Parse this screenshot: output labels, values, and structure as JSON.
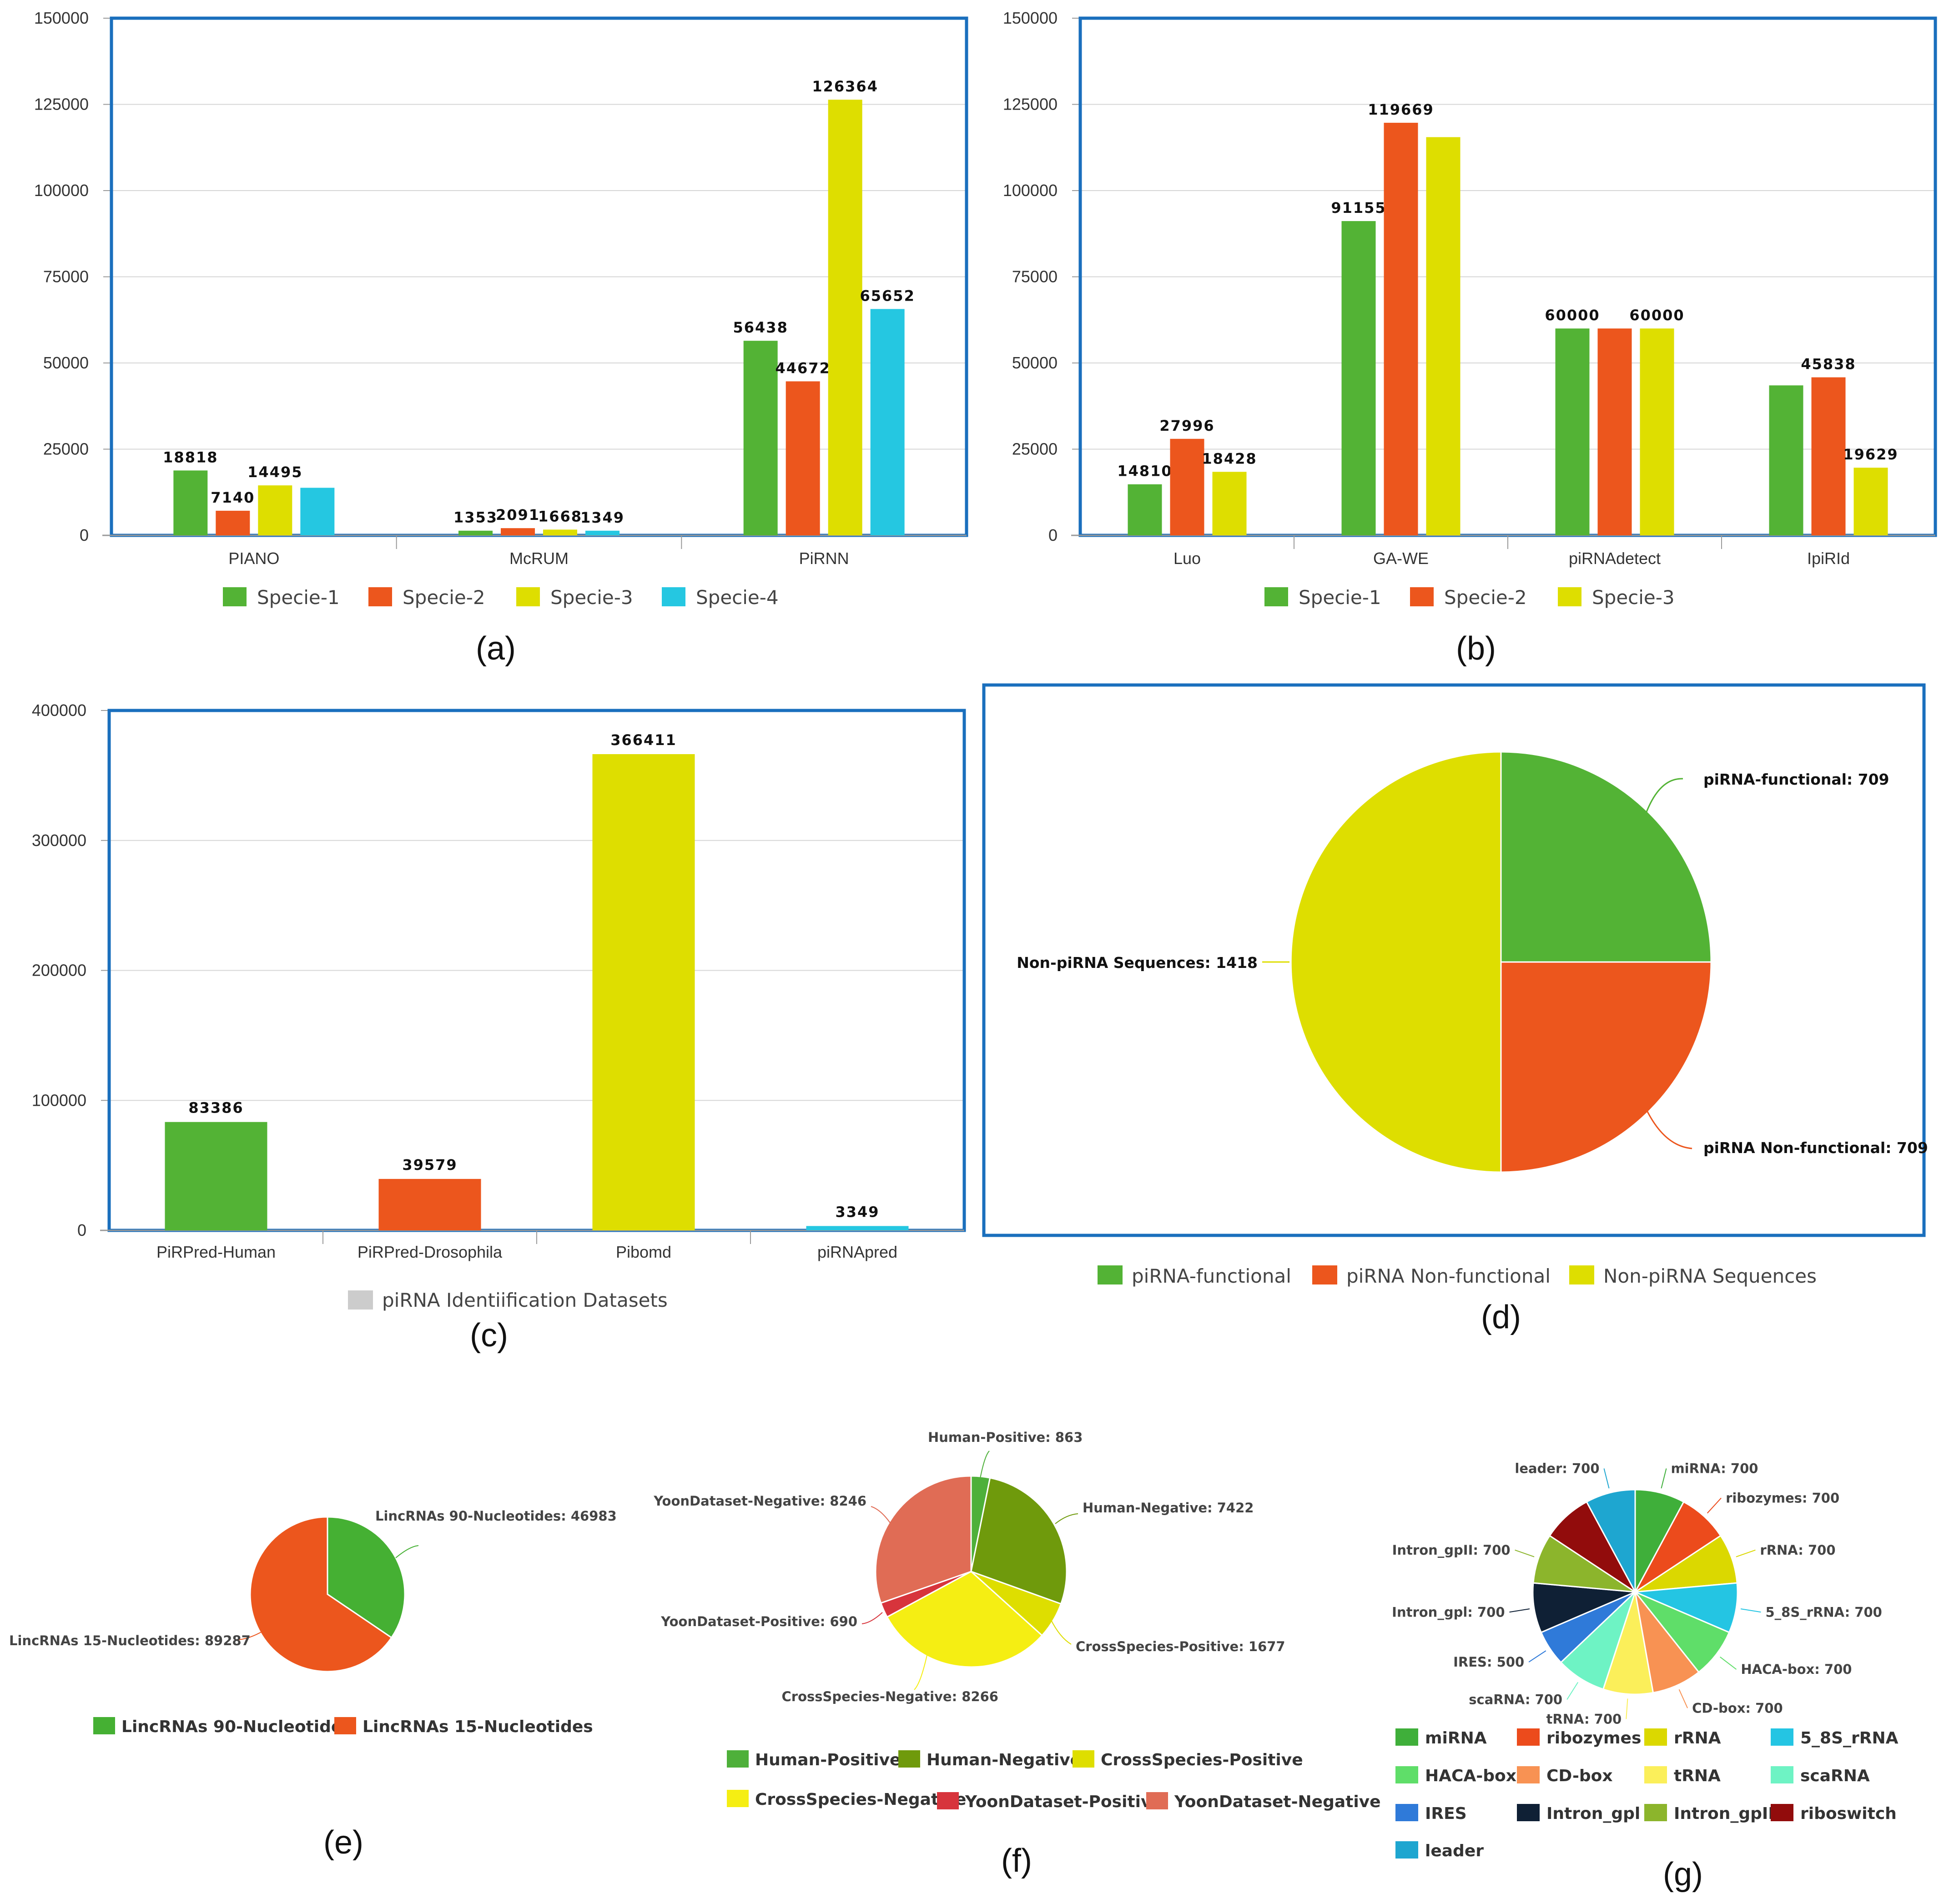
{
  "colors": {
    "green": "#53b335",
    "orange": "#ec561d",
    "yellow": "#dede00",
    "cyan": "#25c7e1",
    "gray": "#cccccc",
    "frame": "#1a6fbd"
  },
  "chart_data": [
    {
      "id": "a",
      "type": "bar",
      "panel_label": "(a)",
      "categories": [
        "PIANO",
        "McRUM",
        "PiRNN"
      ],
      "y_ticks": [
        "0",
        "25000",
        "50000",
        "75000",
        "100000",
        "125000",
        "150000"
      ],
      "ylim": [
        0,
        150000
      ],
      "series": [
        {
          "name": "Specie-1",
          "color": "green",
          "values": [
            18818,
            1353,
            56438
          ],
          "labels": [
            "18818",
            "1353",
            "56438"
          ]
        },
        {
          "name": "Specie-2",
          "color": "orange",
          "values": [
            7140,
            2091,
            44672
          ],
          "labels": [
            "7140",
            "2091",
            "44672"
          ]
        },
        {
          "name": "Specie-3",
          "color": "yellow",
          "values": [
            14495,
            1668,
            126364
          ],
          "labels": [
            "14495",
            "1668",
            "126364"
          ]
        },
        {
          "name": "Specie-4",
          "color": "cyan",
          "values": [
            13800,
            1349,
            65652
          ],
          "labels": [
            "",
            "1349",
            "65652"
          ]
        }
      ]
    },
    {
      "id": "b",
      "type": "bar",
      "panel_label": "(b)",
      "categories": [
        "Luo",
        "GA-WE",
        "piRNAdetect",
        "IpiRId"
      ],
      "y_ticks": [
        "0",
        "25000",
        "50000",
        "75000",
        "100000",
        "125000",
        "150000"
      ],
      "ylim": [
        0,
        150000
      ],
      "series": [
        {
          "name": "Specie-1",
          "color": "green",
          "values": [
            14810,
            91155,
            60000,
            43500
          ],
          "labels": [
            "14810",
            "91155",
            "60000",
            ""
          ]
        },
        {
          "name": "Specie-2",
          "color": "orange",
          "values": [
            27996,
            119669,
            60000,
            45838
          ],
          "labels": [
            "27996",
            "119669",
            "",
            "45838"
          ]
        },
        {
          "name": "Specie-3",
          "color": "yellow",
          "values": [
            18428,
            115500,
            60000,
            19629
          ],
          "labels": [
            "18428",
            "",
            "60000",
            "19629"
          ]
        }
      ]
    },
    {
      "id": "c",
      "type": "bar",
      "panel_label": "(c)",
      "categories": [
        "PiRPred-Human",
        "PiRPred-Drosophila",
        "Pibomd",
        "piRNApred"
      ],
      "y_ticks": [
        "0",
        "100000",
        "200000",
        "300000",
        "400000"
      ],
      "ylim": [
        0,
        400000
      ],
      "values": [
        83386,
        39579,
        366411,
        3349
      ],
      "labels": [
        "83386",
        "39579",
        "366411",
        "3349"
      ],
      "bar_colors": [
        "green",
        "orange",
        "yellow",
        "cyan"
      ],
      "legend": [
        {
          "name": "piRNA Identiification Datasets",
          "color": "gray"
        }
      ]
    },
    {
      "id": "d",
      "type": "pie",
      "panel_label": "(d)",
      "slices": [
        {
          "name": "piRNA-functional",
          "value": 709,
          "color": "green",
          "label": "piRNA-functional: 709"
        },
        {
          "name": "piRNA Non-functional",
          "value": 709,
          "color": "orange",
          "label": "piRNA Non-functional: 709"
        },
        {
          "name": "Non-piRNA Sequences",
          "value": 1418,
          "color": "yellow",
          "label": "Non-piRNA Sequences: 1418"
        }
      ]
    },
    {
      "id": "e",
      "type": "pie",
      "panel_label": "(e)",
      "slices": [
        {
          "name": "LincRNAs 90-Nucleotides",
          "value": 46983,
          "color": "#45b033",
          "label": "LincRNAs 90-Nucleotides: 46983"
        },
        {
          "name": "LincRNAs 15-Nucleotides",
          "value": 89287,
          "color": "#ec561d",
          "label": "LincRNAs 15-Nucleotides: 89287"
        }
      ]
    },
    {
      "id": "f",
      "type": "pie",
      "panel_label": "(f)",
      "slices": [
        {
          "name": "Human-Positive",
          "value": 863,
          "color": "#4eb03a",
          "label": "Human-Positive: 863"
        },
        {
          "name": "Human-Negative",
          "value": 7422,
          "color": "#6f9a0c",
          "label": "Human-Negative: 7422"
        },
        {
          "name": "CrossSpecies-Positive",
          "value": 1677,
          "color": "#dede00",
          "label": "CrossSpecies-Positive: 1677"
        },
        {
          "name": "CrossSpecies-Negative",
          "value": 8266,
          "color": "#f5ee13",
          "label": "CrossSpecies-Negative: 8266"
        },
        {
          "name": "YoonDataset-Positive",
          "value": 690,
          "color": "#d7343c",
          "label": "YoonDataset-Positive: 690"
        },
        {
          "name": "YoonDataset-Negative",
          "value": 8246,
          "color": "#e06c55",
          "label": "YoonDataset-Negative: 8246"
        }
      ]
    },
    {
      "id": "g",
      "type": "pie",
      "panel_label": "(g)",
      "slices": [
        {
          "name": "miRNA",
          "value": 700,
          "color": "#3faf3a",
          "label": "miRNA: 700"
        },
        {
          "name": "ribozymes",
          "value": 700,
          "color": "#ec4b1c",
          "label": "ribozymes: 700"
        },
        {
          "name": "rRNA",
          "value": 700,
          "color": "#dbd800",
          "label": "rRNA: 700"
        },
        {
          "name": "5_8S_rRNA",
          "value": 700,
          "color": "#24c5e3",
          "label": "5_8S_rRNA: 700"
        },
        {
          "name": "HACA-box",
          "value": 700,
          "color": "#5fde69",
          "label": "HACA-box: 700"
        },
        {
          "name": "CD-box",
          "value": 700,
          "color": "#f89253",
          "label": "CD-box: 700"
        },
        {
          "name": "tRNA",
          "value": 700,
          "color": "#fbef5a",
          "label": "tRNA: 700"
        },
        {
          "name": "scaRNA",
          "value": 700,
          "color": "#6ef3c4",
          "label": "scaRNA: 700"
        },
        {
          "name": "IRES",
          "value": 500,
          "color": "#2f7ad9",
          "label": "IRES: 500"
        },
        {
          "name": "Intron_gpl",
          "value": 700,
          "color": "#0f2035",
          "label": "Intron_gpl: 700"
        },
        {
          "name": "Intron_gpII",
          "value": 700,
          "color": "#8cb52c",
          "label": "Intron_gpII: 700"
        },
        {
          "name": "riboswitch",
          "value": 700,
          "color": "#920c0c",
          "label": ""
        },
        {
          "name": "leader",
          "value": 700,
          "color": "#1ea6d0",
          "label": "leader: 700"
        }
      ],
      "legend_names": [
        "miRNA",
        "ribozymes",
        "rRNA",
        "5_8S_rRNA",
        "HACA-box",
        "CD-box",
        "tRNA",
        "scaRNA",
        "IRES",
        "Intron_gpl",
        "Intron_gpII",
        "riboswitch",
        "leader"
      ]
    }
  ]
}
